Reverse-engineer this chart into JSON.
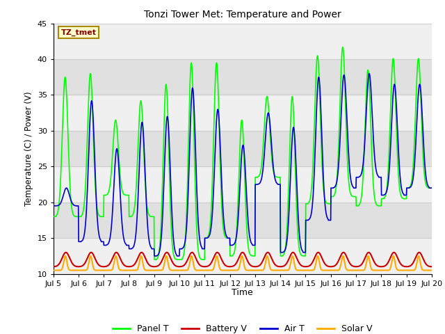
{
  "title": "Tonzi Tower Met: Temperature and Power",
  "xlabel": "Time",
  "ylabel": "Temperature (C) / Power (V)",
  "xlim": [
    0,
    15
  ],
  "ylim": [
    10,
    45
  ],
  "yticks": [
    10,
    15,
    20,
    25,
    30,
    35,
    40,
    45
  ],
  "xtick_labels": [
    "Jul 5",
    "Jul 6",
    "Jul 7",
    "Jul 8",
    "Jul 9",
    "Jul 10",
    "Jul 11",
    "Jul 12",
    "Jul 13",
    "Jul 14",
    "Jul 15",
    "Jul 16",
    "Jul 17",
    "Jul 18",
    "Jul 19",
    "Jul 20"
  ],
  "annotation_text": "TZ_tmet",
  "annotation_color": "#880000",
  "annotation_bg": "#ffffcc",
  "annotation_border": "#aa8800",
  "colors": {
    "panel_t": "#00ff00",
    "battery_v": "#cc0000",
    "air_t": "#0000cc",
    "solar_v": "#ffaa00"
  },
  "legend_labels": [
    "Panel T",
    "Battery V",
    "Air T",
    "Solar V"
  ],
  "bg_color": "#ffffff",
  "plot_bg_light": "#f0f0f0",
  "plot_bg_dark": "#e0e0e0",
  "grid_color": "#d8d8d8"
}
